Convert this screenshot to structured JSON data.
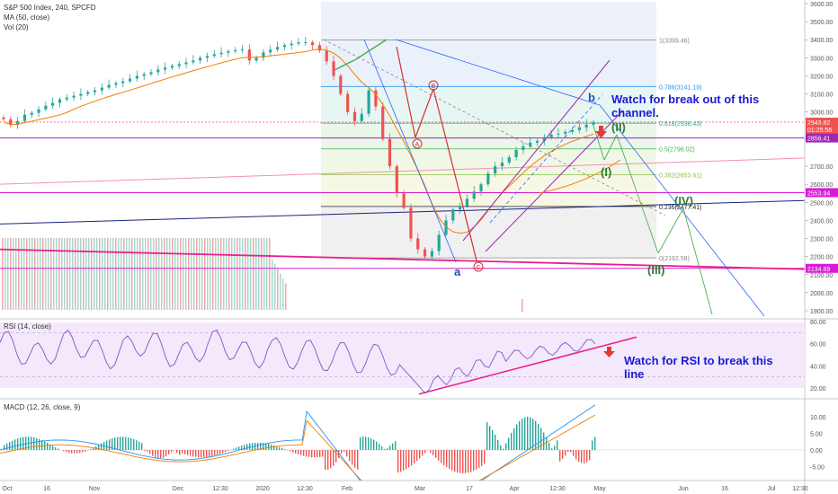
{
  "header": {
    "symbol": "S&P 500 Index, 240, SPCFD",
    "ma": "MA (50, close)",
    "vol": "Vol (20)"
  },
  "price_axis": {
    "ticks": [
      {
        "v": 3600,
        "l": "3600.00"
      },
      {
        "v": 3500,
        "l": "3500.00"
      },
      {
        "v": 3400,
        "l": "3400.00"
      },
      {
        "v": 3300,
        "l": "3300.00"
      },
      {
        "v": 3200,
        "l": "3200.00"
      },
      {
        "v": 3100,
        "l": "3100.00"
      },
      {
        "v": 3000,
        "l": "3000.00"
      },
      {
        "v": 2700,
        "l": "2700.00"
      },
      {
        "v": 2600,
        "l": "2600.00"
      },
      {
        "v": 2500,
        "l": "2500.00"
      },
      {
        "v": 2400,
        "l": "2400.00"
      },
      {
        "v": 2300,
        "l": "2300.00"
      },
      {
        "v": 2200,
        "l": "2200.00"
      },
      {
        "v": 2100,
        "l": "2100.00"
      },
      {
        "v": 2000,
        "l": "2000.00"
      },
      {
        "v": 1900,
        "l": "1900.00"
      }
    ],
    "tags": [
      {
        "v": 2943.82,
        "l": "2943.82",
        "color": "#ef5350"
      },
      {
        "v": 2905,
        "l": "01:25:56",
        "color": "#ef5350"
      },
      {
        "v": 2856.41,
        "l": "2856.41",
        "color": "#9c27b0"
      },
      {
        "v": 2553.94,
        "l": "2553.94",
        "color": "#d81bd6"
      },
      {
        "v": 2134.69,
        "l": "2134.69",
        "color": "#d81bd6"
      }
    ]
  },
  "fib_levels": [
    {
      "v": 3399.46,
      "l": "1(3399.46)",
      "color": "#888888"
    },
    {
      "v": 3141.19,
      "l": "0.786(3141.19)",
      "color": "#2196f3"
    },
    {
      "v": 2938.43,
      "l": "0.618(2938.43)",
      "color": "#26a69a"
    },
    {
      "v": 2796.02,
      "l": "0.5(2796.02)",
      "color": "#4caf50"
    },
    {
      "v": 2653.61,
      "l": "0.382(2653.61)",
      "color": "#8bc34a"
    },
    {
      "v": 2477.41,
      "l": "0.236(2477.41)",
      "color": "#222222"
    },
    {
      "v": 2192.58,
      "l": "0(2192.58)",
      "color": "#888888"
    }
  ],
  "wave_labels": {
    "a": "a",
    "b": "b",
    "A": "A",
    "B": "B",
    "C": "C",
    "I": "(I)",
    "II": "(II)",
    "III": "(III)",
    "IV": "(IV)"
  },
  "annotations": {
    "channel_note": "Watch for break out of this channel.",
    "rsi_note": "Watch for RSI to break this line"
  },
  "rsi": {
    "label": "RSI (14, close)",
    "ticks": [
      {
        "v": 80,
        "l": "80.00"
      },
      {
        "v": 60,
        "l": "60.00"
      },
      {
        "v": 40,
        "l": "40.00"
      },
      {
        "v": 20,
        "l": "20.00"
      }
    ]
  },
  "macd": {
    "label": "MACD (12, 26, close, 9)",
    "ticks": [
      {
        "v": 10,
        "l": "10.00"
      },
      {
        "v": 5,
        "l": "5.00"
      },
      {
        "v": 0,
        "l": "0.00"
      },
      {
        "v": -5,
        "l": "-5.00"
      }
    ]
  },
  "time_axis": {
    "labels": [
      "Oct",
      "16",
      "Nov",
      "Dec",
      "12:30",
      "2020",
      "12:30",
      "Feb",
      "Mar",
      "17",
      "Apr",
      "12:30",
      "May",
      "Jun",
      "16",
      "Jul",
      "12:30"
    ]
  },
  "chart_data": {
    "type": "candlestick",
    "symbol": "S&P 500 Index",
    "ylim": [
      1860,
      3640
    ],
    "close_series": [
      2960,
      2930,
      2950,
      2985,
      2995,
      3015,
      3035,
      3050,
      3070,
      3080,
      3090,
      3100,
      3110,
      3120,
      3135,
      3150,
      3160,
      3170,
      3185,
      3200,
      3210,
      3220,
      3235,
      3245,
      3255,
      3265,
      3275,
      3285,
      3300,
      3310,
      3320,
      3328,
      3336,
      3342,
      3346,
      3285,
      3300,
      3330,
      3345,
      3360,
      3370,
      3378,
      3385,
      3386,
      3370,
      3340,
      3280,
      3200,
      3100,
      3000,
      2950,
      2990,
      3120,
      3030,
      2850,
      2700,
      2550,
      2470,
      2300,
      2240,
      2200,
      2230,
      2320,
      2400,
      2460,
      2480,
      2520,
      2560,
      2600,
      2660,
      2700,
      2720,
      2750,
      2790,
      2810,
      2830,
      2840,
      2860,
      2875,
      2880,
      2890,
      2900,
      2915,
      2930,
      2944
    ],
    "ma50_note": "MA (50, close)",
    "rsi_ylim": [
      10,
      85
    ],
    "macd_ylim": [
      -8,
      14
    ]
  }
}
